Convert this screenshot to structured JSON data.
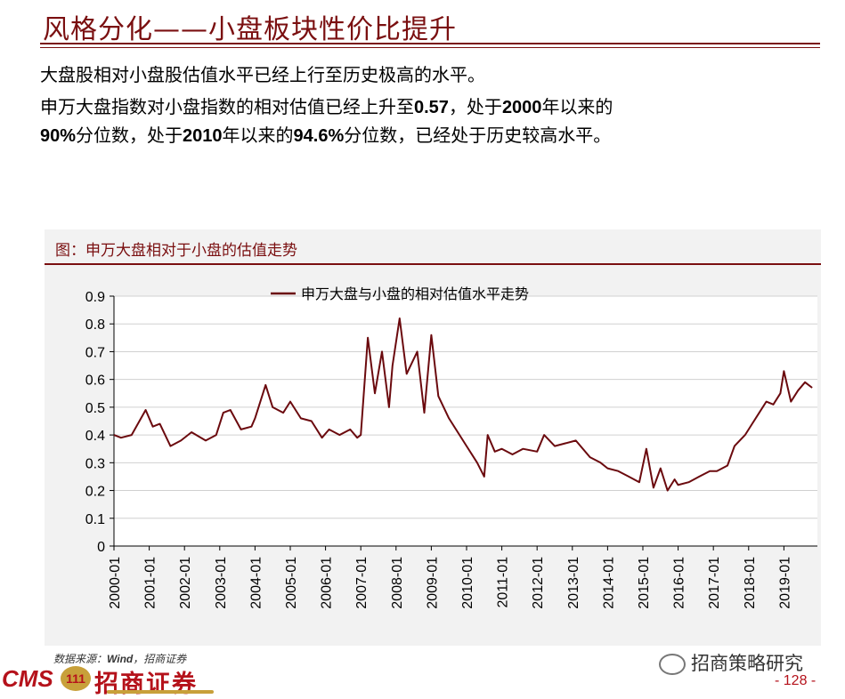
{
  "slide": {
    "title": "风格分化——小盘板块性价比提升",
    "line1": "大盘股相对小盘股估值水平已经上行至历史极高的水平。",
    "line2_parts": [
      "申万大盘指数对小盘指数的相对估值已经上升至",
      "0.57",
      "，处于",
      "2000",
      "年以来的"
    ],
    "line3_parts": [
      "90%",
      "分位数，处于",
      "2010",
      "年以来的",
      "94.6%",
      "分位数，已经处于历史较高水平。"
    ]
  },
  "figure": {
    "caption": "图：申万大盘相对于小盘的估值走势",
    "source_label": "数据来源：",
    "source_value": "Wind",
    "source_rest": "，招商证券"
  },
  "footer": {
    "logo_text": "CMS",
    "logo_badge": "111",
    "logo_cn": "招商证券",
    "wechat": "招商策略研究",
    "page": "- 128 -"
  },
  "colors": {
    "series": "#6b0a0e",
    "accent": "#7a0f10",
    "panel": "#f2f2f2"
  },
  "chart_data": {
    "type": "line",
    "title": "",
    "xlabel": "",
    "ylabel": "",
    "ylim": [
      0,
      0.9
    ],
    "yticks": [
      "0",
      "0.1",
      "0.2",
      "0.3",
      "0.4",
      "0.5",
      "0.6",
      "0.7",
      "0.8",
      "0.9"
    ],
    "xticks": [
      "2000-01",
      "2001-01",
      "2002-01",
      "2003-01",
      "2004-01",
      "2005-01",
      "2006-01",
      "2007-01",
      "2008-01",
      "2009-01",
      "2010-01",
      "2011-01",
      "2012-01",
      "2013-01",
      "2014-01",
      "2015-01",
      "2016-01",
      "2017-01",
      "2018-01",
      "2019-01"
    ],
    "grid": true,
    "legend": "top-center",
    "series": [
      {
        "name": "申万大盘与小盘的相对估值水平走势",
        "x": [
          2000.0,
          2000.2,
          2000.5,
          2000.9,
          2001.1,
          2001.3,
          2001.6,
          2001.9,
          2002.2,
          2002.6,
          2002.9,
          2003.1,
          2003.3,
          2003.6,
          2003.9,
          2004.0,
          2004.3,
          2004.5,
          2004.8,
          2005.0,
          2005.3,
          2005.6,
          2005.9,
          2006.1,
          2006.4,
          2006.7,
          2006.9,
          2007.0,
          2007.2,
          2007.4,
          2007.6,
          2007.8,
          2007.9,
          2008.1,
          2008.3,
          2008.6,
          2008.8,
          2009.0,
          2009.2,
          2009.5,
          2009.8,
          2010.0,
          2010.3,
          2010.5,
          2010.6,
          2010.8,
          2011.0,
          2011.3,
          2011.6,
          2012.0,
          2012.2,
          2012.5,
          2012.8,
          2013.1,
          2013.5,
          2013.8,
          2014.0,
          2014.3,
          2014.6,
          2014.9,
          2015.1,
          2015.3,
          2015.5,
          2015.7,
          2015.9,
          2016.0,
          2016.3,
          2016.6,
          2016.9,
          2017.1,
          2017.4,
          2017.6,
          2017.9,
          2018.1,
          2018.3,
          2018.5,
          2018.7,
          2018.9,
          2019.0,
          2019.2,
          2019.4,
          2019.6,
          2019.8
        ],
        "values": [
          0.4,
          0.39,
          0.4,
          0.49,
          0.43,
          0.44,
          0.36,
          0.38,
          0.41,
          0.38,
          0.4,
          0.48,
          0.49,
          0.42,
          0.43,
          0.46,
          0.58,
          0.5,
          0.48,
          0.52,
          0.46,
          0.45,
          0.39,
          0.42,
          0.4,
          0.42,
          0.39,
          0.4,
          0.75,
          0.55,
          0.7,
          0.5,
          0.65,
          0.82,
          0.62,
          0.7,
          0.48,
          0.76,
          0.54,
          0.46,
          0.4,
          0.36,
          0.3,
          0.25,
          0.4,
          0.34,
          0.35,
          0.33,
          0.35,
          0.34,
          0.4,
          0.36,
          0.37,
          0.38,
          0.32,
          0.3,
          0.28,
          0.27,
          0.25,
          0.23,
          0.35,
          0.21,
          0.28,
          0.2,
          0.24,
          0.22,
          0.23,
          0.25,
          0.27,
          0.27,
          0.29,
          0.36,
          0.4,
          0.44,
          0.48,
          0.52,
          0.51,
          0.55,
          0.63,
          0.52,
          0.56,
          0.59,
          0.57
        ]
      }
    ]
  }
}
